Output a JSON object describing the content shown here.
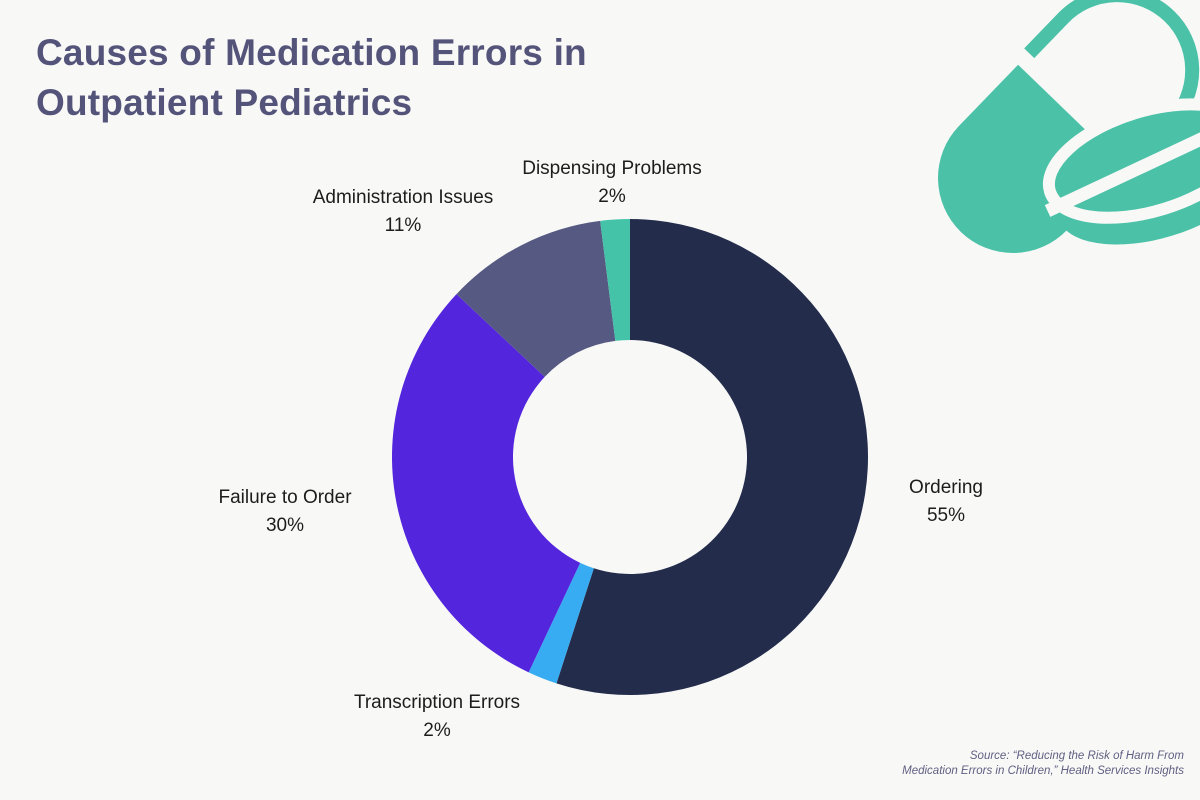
{
  "title": {
    "line1": "Causes of Medication Errors in",
    "line2": "Outpatient Pediatrics"
  },
  "chart_data": {
    "type": "pie",
    "variant": "donut",
    "title": "Causes of Medication Errors in Outpatient Pediatrics",
    "unit": "%",
    "start_angle_deg": 0,
    "direction": "clockwise",
    "inner_radius_ratio": 0.49,
    "legend": "labels-around-chart",
    "slices": [
      {
        "label": "Ordering",
        "value": 55,
        "pct": "55%",
        "color": "#232c4b"
      },
      {
        "label": "Transcription Errors",
        "value": 2,
        "pct": "2%",
        "color": "#38acf2"
      },
      {
        "label": "Failure to Order",
        "value": 30,
        "pct": "30%",
        "color": "#5326dd"
      },
      {
        "label": "Administration Issues",
        "value": 11,
        "pct": "11%",
        "color": "#565a83"
      },
      {
        "label": "Dispensing Problems",
        "value": 2,
        "pct": "2%",
        "color": "#44c3a8"
      }
    ]
  },
  "icon": {
    "name": "capsule-and-tablet-icon",
    "color": "#4bc2a7"
  },
  "source": {
    "line1": "Source:  “Reducing the Risk of Harm From",
    "line2": "Medication Errors in Children,” Health Services Insights"
  },
  "colors": {
    "background": "#f8f8f7",
    "title_text": "#54547a",
    "label_text": "#1d1d1d",
    "source_text": "#5f5f82"
  }
}
